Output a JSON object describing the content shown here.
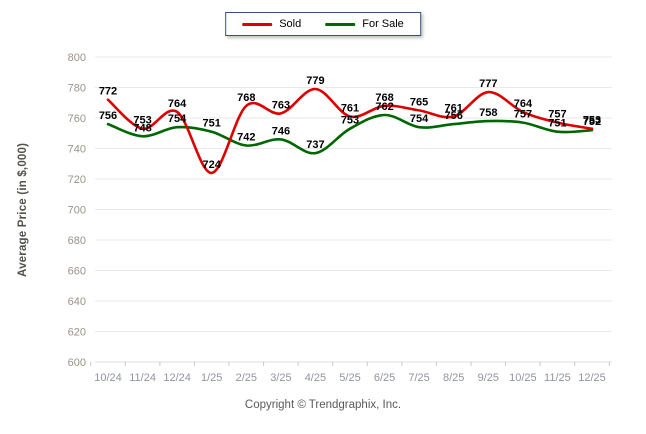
{
  "legend": {
    "items": [
      {
        "label": "Sold",
        "color": "#dd0000"
      },
      {
        "label": "For Sale",
        "color": "#006600"
      }
    ]
  },
  "chart_data": {
    "type": "line",
    "categories": [
      "10/24",
      "11/24",
      "12/24",
      "1/25",
      "2/25",
      "3/25",
      "4/25",
      "5/25",
      "6/25",
      "7/25",
      "8/25",
      "9/25",
      "10/25",
      "11/25",
      "12/25"
    ],
    "series": [
      {
        "name": "Sold",
        "color": "#dd0000",
        "values": [
          772,
          753,
          764,
          724,
          768,
          763,
          779,
          761,
          768,
          765,
          761,
          777,
          764,
          757,
          753
        ]
      },
      {
        "name": "For Sale",
        "color": "#006600",
        "values": [
          756,
          748,
          754,
          751,
          742,
          746,
          737,
          753,
          762,
          754,
          756,
          758,
          757,
          751,
          752
        ]
      }
    ],
    "title": "",
    "xlabel": "",
    "ylabel": "Average Price (in $,000)",
    "ylim": [
      600,
      800
    ],
    "ytick_step": 20,
    "grid": true,
    "smooth": true,
    "legend_position": "top-center",
    "colors": {
      "gridline": "#e9e9e9",
      "axis_line": "#dcdcdc",
      "tick_mark": "#c8c8c8",
      "y_tick_text": "#9a9488",
      "x_tick_text": "#8f959f",
      "data_label_text": "#000000"
    }
  },
  "footer": {
    "copyright": "Copyright © Trendgraphix, Inc."
  }
}
